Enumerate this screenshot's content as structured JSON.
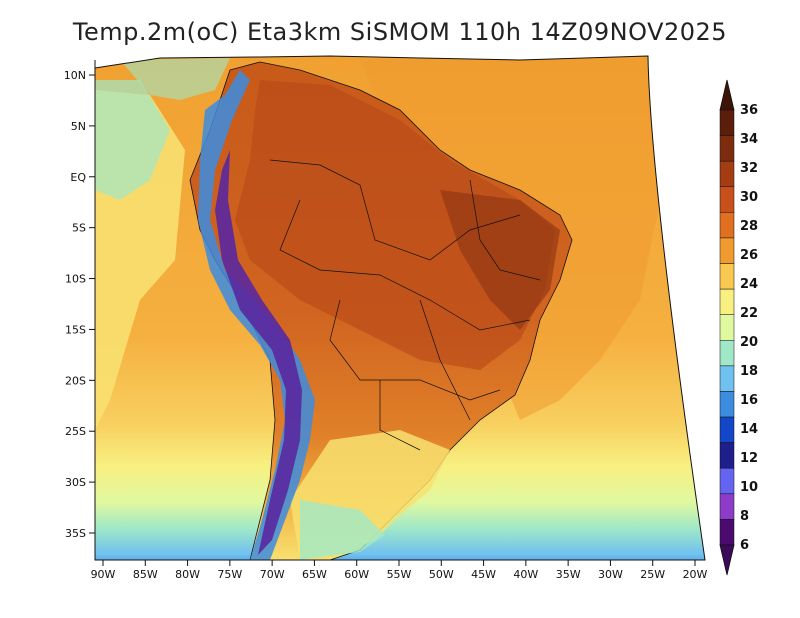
{
  "title": "Temp.2m(oC) Eta3km SiSMOM 110h 14Z09NOV2025",
  "longitude_ticks": [
    "90W",
    "85W",
    "80W",
    "75W",
    "70W",
    "65W",
    "60W",
    "55W",
    "50W",
    "45W",
    "40W",
    "35W",
    "30W",
    "25W",
    "20W"
  ],
  "latitude_ticks": [
    "10N",
    "5N",
    "EQ",
    "5S",
    "10S",
    "15S",
    "20S",
    "25S",
    "30S",
    "35S"
  ],
  "colorbar": {
    "labels": [
      "36",
      "34",
      "32",
      "30",
      "28",
      "26",
      "24",
      "22",
      "20",
      "18",
      "16",
      "14",
      "12",
      "10",
      "8",
      "6"
    ],
    "colors": [
      "#5a1e0a",
      "#7e2c10",
      "#a43c14",
      "#c8501a",
      "#e07020",
      "#f09a30",
      "#f8c850",
      "#f8f080",
      "#e0f8a0",
      "#a0e8c8",
      "#70c0f0",
      "#3c8ce0",
      "#1446c8",
      "#1e1e8c",
      "#6464f0",
      "#8c3cc8",
      "#4a0a6e"
    ],
    "arrow_top_color": "#3c1408",
    "arrow_bottom_color": "#3c0a5a"
  },
  "colors": {
    "ocean_warm": "#f5b040",
    "land_hot": "#c8501a",
    "andes_cold": "#5a28a0",
    "south_cool": "#70c0f0"
  }
}
